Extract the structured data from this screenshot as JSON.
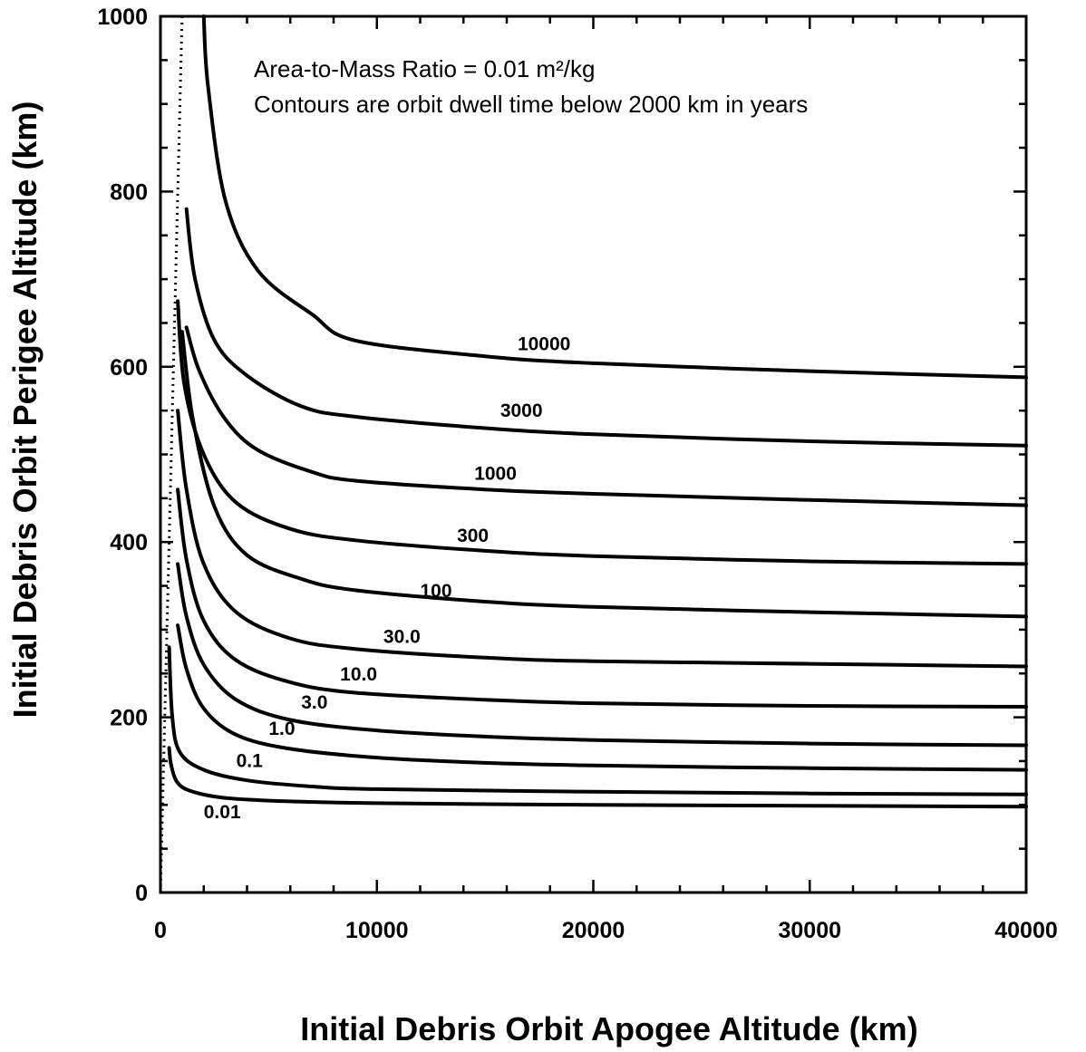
{
  "chart_data": {
    "type": "line",
    "annotation_lines": [
      "Area-to-Mass Ratio = 0.01 m²/kg",
      "Contours are orbit dwell time below 2000 km in years"
    ],
    "xlabel": "Initial Debris Orbit Apogee Altitude (km)",
    "ylabel": "Initial Debris Orbit Perigee Altitude (km)",
    "xlim": [
      0,
      40000
    ],
    "ylim": [
      0,
      1000
    ],
    "x_ticks": [
      "0",
      "10000",
      "20000",
      "30000",
      "40000"
    ],
    "y_ticks": [
      "0",
      "200",
      "400",
      "600",
      "800",
      "1000"
    ],
    "grid": false,
    "boundary_line": {
      "style": "dotted",
      "x": [
        1000,
        1000,
        0
      ],
      "y": [
        1000,
        1000,
        0
      ]
    },
    "series": [
      {
        "name": "0.01",
        "x": [
          400,
          500,
          800,
          1500,
          3000,
          6000,
          10000,
          20000,
          30000,
          40000
        ],
        "y": [
          165,
          145,
          125,
          115,
          108,
          104,
          102,
          100,
          99,
          98
        ]
      },
      {
        "name": "0.1",
        "x": [
          400,
          550,
          900,
          2000,
          4000,
          7000,
          10000,
          20000,
          30000,
          40000
        ],
        "y": [
          280,
          200,
          160,
          140,
          128,
          121,
          118,
          115,
          113,
          112
        ]
      },
      {
        "name": "1.0",
        "x": [
          800,
          1200,
          2000,
          3500,
          6000,
          10000,
          15000,
          20000,
          30000,
          40000
        ],
        "y": [
          305,
          255,
          210,
          180,
          164,
          154,
          148,
          145,
          142,
          140
        ]
      },
      {
        "name": "3.0",
        "x": [
          800,
          1200,
          2000,
          3500,
          6000,
          10000,
          15000,
          20000,
          30000,
          40000
        ],
        "y": [
          375,
          315,
          260,
          220,
          197,
          185,
          178,
          174,
          170,
          168
        ]
      },
      {
        "name": "10.0",
        "x": [
          800,
          1200,
          2000,
          3500,
          6000,
          9000,
          15000,
          20000,
          30000,
          40000
        ],
        "y": [
          460,
          380,
          310,
          265,
          240,
          228,
          220,
          216,
          213,
          212
        ]
      },
      {
        "name": "30.0",
        "x": [
          800,
          1200,
          2000,
          3500,
          6000,
          9000,
          15000,
          20000,
          30000,
          40000
        ],
        "y": [
          550,
          460,
          375,
          320,
          290,
          278,
          268,
          264,
          261,
          258
        ]
      },
      {
        "name": "100",
        "x": [
          1000,
          1500,
          2500,
          4000,
          6500,
          9000,
          15000,
          20000,
          30000,
          40000
        ],
        "y": [
          640,
          540,
          440,
          385,
          358,
          345,
          332,
          326,
          320,
          315
        ]
      },
      {
        "name": "300",
        "x": [
          800,
          1100,
          2000,
          3500,
          6000,
          9000,
          15000,
          20000,
          30000,
          40000
        ],
        "y": [
          675,
          580,
          500,
          445,
          415,
          402,
          390,
          384,
          378,
          375
        ]
      },
      {
        "name": "1000",
        "x": [
          1200,
          1800,
          3000,
          4500,
          7000,
          9000,
          15000,
          20000,
          30000,
          40000
        ],
        "y": [
          645,
          595,
          540,
          505,
          480,
          470,
          460,
          455,
          448,
          442
        ]
      },
      {
        "name": "3000",
        "x": [
          1200,
          1600,
          2500,
          4000,
          6500,
          9000,
          15000,
          20000,
          30000,
          40000
        ],
        "y": [
          780,
          700,
          630,
          590,
          555,
          543,
          530,
          523,
          515,
          510
        ]
      },
      {
        "name": "10000",
        "x": [
          2000,
          2200,
          3000,
          4500,
          7000,
          9000,
          15000,
          20000,
          30000,
          40000
        ],
        "y": [
          1000,
          920,
          790,
          710,
          660,
          630,
          612,
          604,
          595,
          588
        ]
      }
    ],
    "contour_labels": [
      {
        "text": "0.01",
        "x": 2000,
        "y": 85
      },
      {
        "text": "0.1",
        "x": 3500,
        "y": 143
      },
      {
        "text": "1.0",
        "x": 5000,
        "y": 180
      },
      {
        "text": "3.0",
        "x": 6500,
        "y": 210
      },
      {
        "text": "10.0",
        "x": 8300,
        "y": 242
      },
      {
        "text": "30.0",
        "x": 10300,
        "y": 285
      },
      {
        "text": "100",
        "x": 12000,
        "y": 337
      },
      {
        "text": "300",
        "x": 13700,
        "y": 400
      },
      {
        "text": "1000",
        "x": 14500,
        "y": 471
      },
      {
        "text": "3000",
        "x": 15700,
        "y": 543
      },
      {
        "text": "10000",
        "x": 16500,
        "y": 619
      }
    ]
  }
}
